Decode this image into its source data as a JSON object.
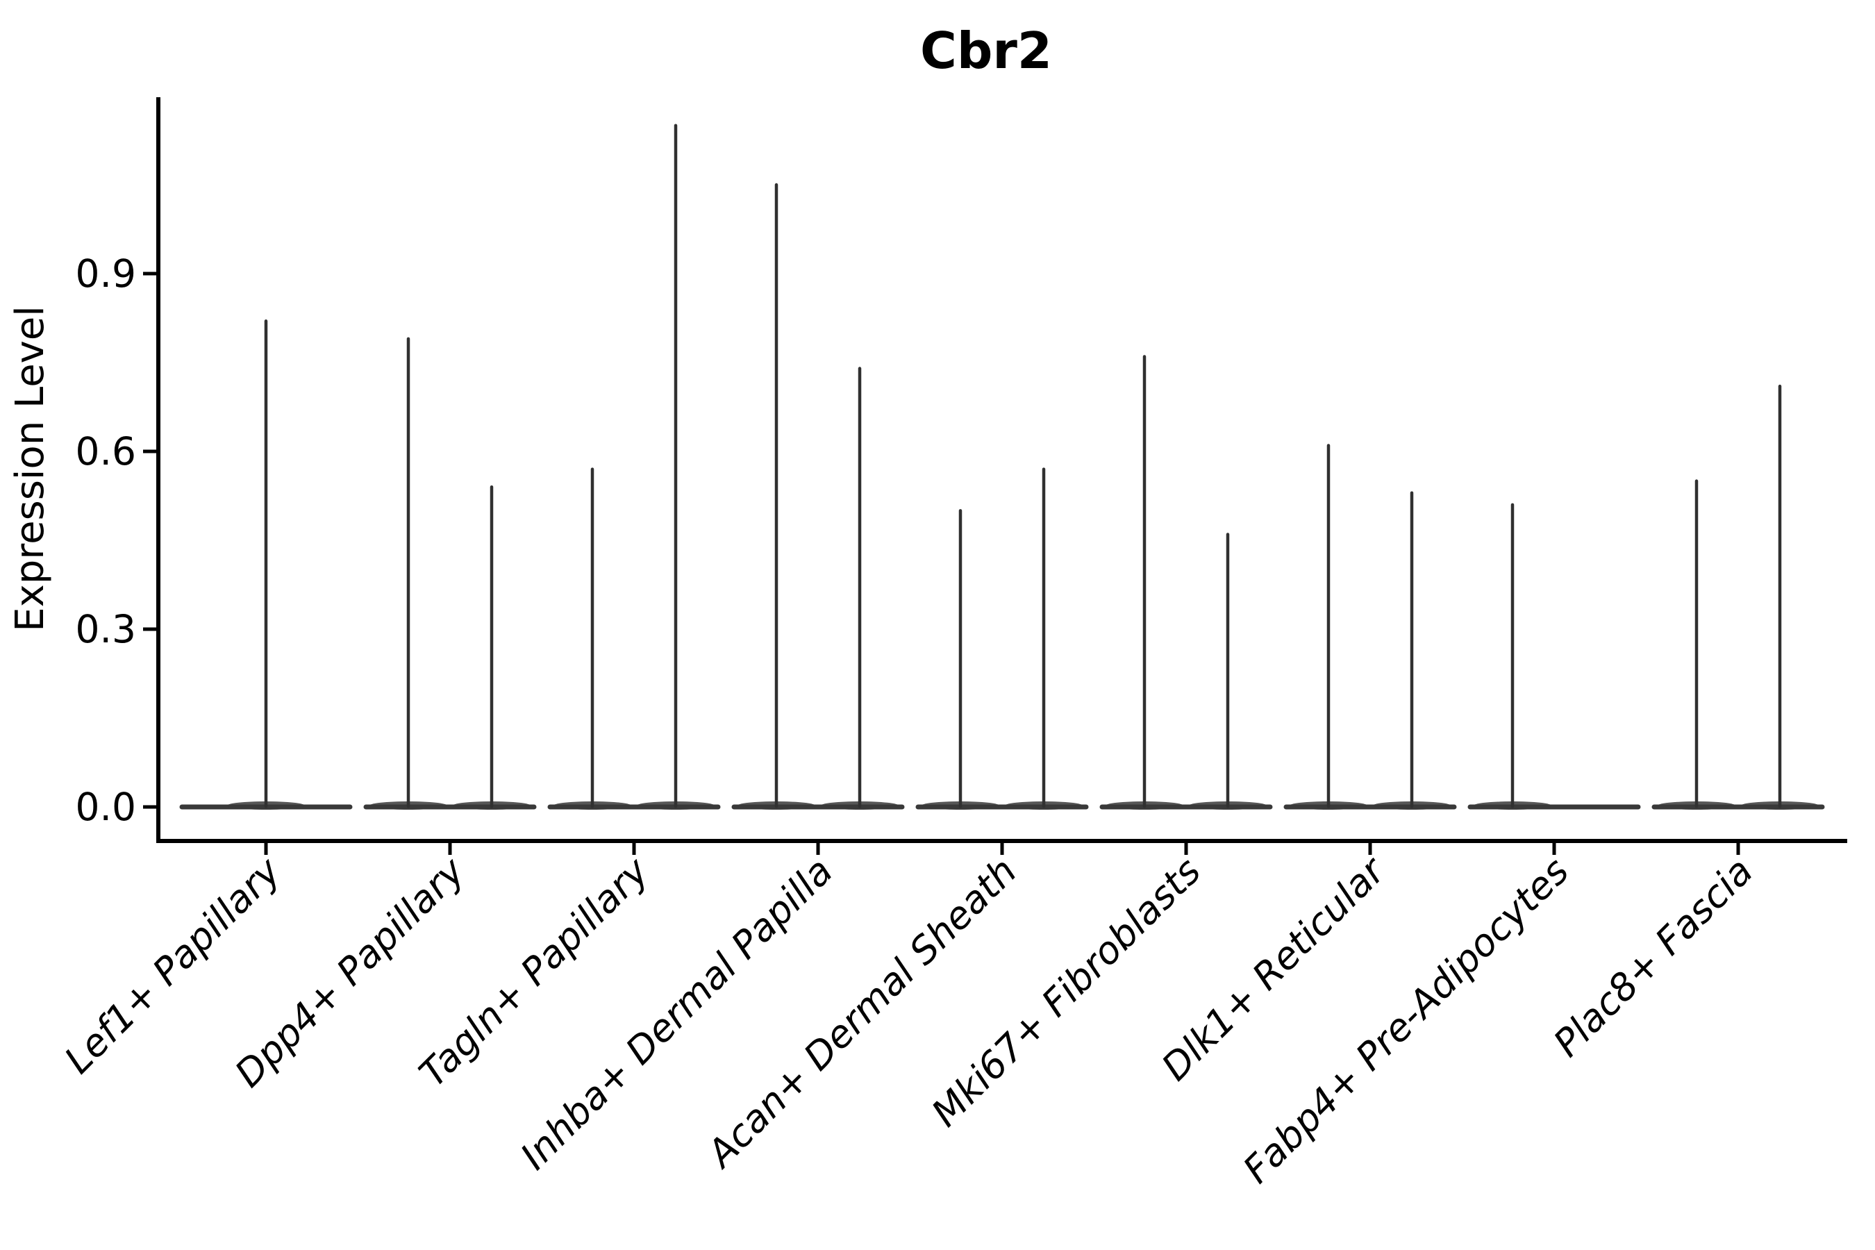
{
  "chart_data": {
    "type": "violin",
    "title": "Cbr2",
    "xlabel": "",
    "ylabel": "Expression Level",
    "ylim": [
      0,
      1.2
    ],
    "y_ticks": [
      {
        "value": 0.0,
        "label": "0.0"
      },
      {
        "value": 0.3,
        "label": "0.3"
      },
      {
        "value": 0.6,
        "label": "0.6"
      },
      {
        "value": 0.9,
        "label": "0.9"
      }
    ],
    "grid": false,
    "legend": "none",
    "categories": [
      "Lef1+ Papillary",
      "Dpp4+ Papillary",
      "Tagln+ Papillary",
      "Inhba+ Dermal Papilla",
      "Acan+ Dermal Sheath",
      "Mki67+ Fibroblasts",
      "Dlk1+ Reticular",
      "Fabp4+ Pre-Adipocytes",
      "Plac8+ Fascia"
    ],
    "series": [
      {
        "category": "Lef1+ Papillary",
        "violins": [
          {
            "position": "center",
            "max_expression": 0.82
          }
        ]
      },
      {
        "category": "Dpp4+ Papillary",
        "violins": [
          {
            "position": "left",
            "max_expression": 0.79
          },
          {
            "position": "right",
            "max_expression": 0.54
          }
        ]
      },
      {
        "category": "Tagln+ Papillary",
        "violins": [
          {
            "position": "left",
            "max_expression": 0.57
          },
          {
            "position": "right",
            "max_expression": 1.15
          }
        ]
      },
      {
        "category": "Inhba+ Dermal Papilla",
        "violins": [
          {
            "position": "left",
            "max_expression": 1.05
          },
          {
            "position": "right",
            "max_expression": 0.74
          }
        ]
      },
      {
        "category": "Acan+ Dermal Sheath",
        "violins": [
          {
            "position": "left",
            "max_expression": 0.5
          },
          {
            "position": "right",
            "max_expression": 0.57
          }
        ]
      },
      {
        "category": "Mki67+ Fibroblasts",
        "violins": [
          {
            "position": "left",
            "max_expression": 0.76
          },
          {
            "position": "right",
            "max_expression": 0.46
          }
        ]
      },
      {
        "category": "Dlk1+ Reticular",
        "violins": [
          {
            "position": "left",
            "max_expression": 0.61
          },
          {
            "position": "right",
            "max_expression": 0.53
          }
        ]
      },
      {
        "category": "Fabp4+ Pre-Adipocytes",
        "violins": [
          {
            "position": "left",
            "max_expression": 0.51
          },
          {
            "position": "right",
            "max_expression": 0.0
          }
        ]
      },
      {
        "category": "Plac8+ Fascia",
        "violins": [
          {
            "position": "left",
            "max_expression": 0.55
          },
          {
            "position": "right",
            "max_expression": 0.71
          }
        ]
      }
    ],
    "violin_shape_note": "distributions are concentrated at 0 (flat base) with a hair-thin spike up to the max expressed value",
    "colors": {
      "violin_body": "#393939",
      "spike": "#303030",
      "axis": "#000000",
      "text": "#000000",
      "background": "#ffffff"
    }
  }
}
